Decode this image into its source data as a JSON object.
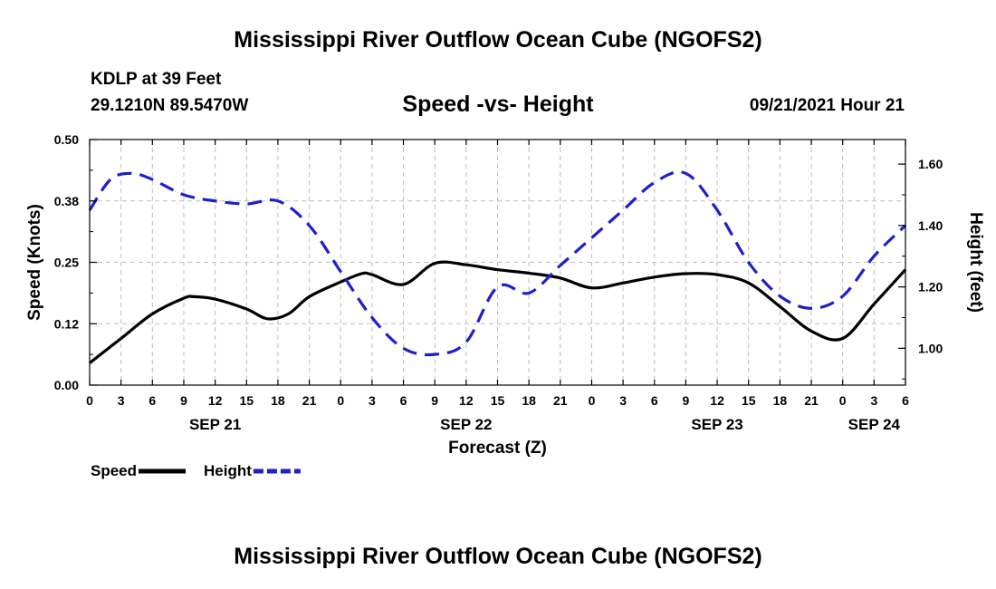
{
  "header": {
    "title": "Mississippi River Outflow Ocean Cube (NGOFS2)",
    "station": "KDLP at 39 Feet",
    "coords": "29.1210N  89.5470W",
    "subtitle": "Speed -vs- Height",
    "datetime": "09/21/2021 Hour 21"
  },
  "footer": {
    "title": "Mississippi River Outflow Ocean Cube (NGOFS2)"
  },
  "chart_data": {
    "type": "line",
    "title": "Speed -vs- Height",
    "xlabel": "Forecast (Z)",
    "ylabel_left": "Speed (Knots)",
    "ylabel_right": "Height (feet)",
    "x_unit": "hours from 09/21 00Z",
    "xlim": [
      0,
      78
    ],
    "ylim_left": [
      0,
      0.5
    ],
    "ylim_right": [
      0.88,
      1.68
    ],
    "x_tick_hours": [
      0,
      3,
      6,
      9,
      12,
      15,
      18,
      21,
      24,
      27,
      30,
      33,
      36,
      39,
      42,
      45,
      48,
      51,
      54,
      57,
      60,
      63,
      66,
      69,
      72,
      75,
      78
    ],
    "x_tick_labels": [
      "0",
      "3",
      "6",
      "9",
      "12",
      "15",
      "18",
      "21",
      "0",
      "3",
      "6",
      "9",
      "12",
      "15",
      "18",
      "21",
      "0",
      "3",
      "6",
      "9",
      "12",
      "15",
      "18",
      "21",
      "0",
      "3",
      "6"
    ],
    "date_labels": [
      {
        "hour": 12,
        "label": "SEP 21"
      },
      {
        "hour": 36,
        "label": "SEP 22"
      },
      {
        "hour": 60,
        "label": "SEP 23"
      },
      {
        "hour": 75,
        "label": "SEP 24"
      }
    ],
    "y_left_ticks": [
      "0.00",
      "0.12",
      "0.25",
      "0.38",
      "0.50"
    ],
    "y_left_tick_values": [
      0,
      0.125,
      0.25,
      0.375,
      0.5
    ],
    "y_right_ticks": [
      "1.00",
      "1.20",
      "1.40",
      "1.60"
    ],
    "y_right_tick_values": [
      1.0,
      1.2,
      1.4,
      1.6
    ],
    "grid": true,
    "series": [
      {
        "name": "Speed",
        "axis": "left",
        "color": "#000000",
        "style": "solid",
        "x": [
          0,
          3,
          6,
          9,
          10,
          12,
          15,
          17,
          19,
          21,
          24,
          26,
          27,
          30,
          33,
          36,
          39,
          42,
          45,
          48,
          51,
          54,
          57,
          60,
          63,
          66,
          69,
          72,
          75,
          78
        ],
        "values": [
          0.045,
          0.095,
          0.145,
          0.177,
          0.18,
          0.175,
          0.155,
          0.135,
          0.145,
          0.18,
          0.21,
          0.227,
          0.225,
          0.205,
          0.248,
          0.245,
          0.235,
          0.228,
          0.218,
          0.198,
          0.208,
          0.22,
          0.227,
          0.225,
          0.208,
          0.16,
          0.11,
          0.095,
          0.165,
          0.235
        ]
      },
      {
        "name": "Height",
        "axis": "right",
        "color": "#1f1fcc",
        "style": "dashed",
        "x": [
          0,
          2,
          4,
          6,
          9,
          12,
          15,
          18,
          21,
          24,
          27,
          30,
          33,
          36,
          39,
          42,
          45,
          48,
          51,
          54,
          57,
          60,
          63,
          66,
          69,
          72,
          75,
          78
        ],
        "values": [
          1.45,
          1.55,
          1.57,
          1.55,
          1.5,
          1.48,
          1.47,
          1.48,
          1.4,
          1.25,
          1.1,
          1.0,
          0.98,
          1.02,
          1.2,
          1.18,
          1.27,
          1.36,
          1.45,
          1.54,
          1.57,
          1.45,
          1.28,
          1.17,
          1.13,
          1.17,
          1.3,
          1.4
        ]
      }
    ],
    "legend": [
      {
        "label": "Speed",
        "color": "#000000",
        "style": "solid"
      },
      {
        "label": "Height",
        "color": "#1f1fcc",
        "style": "dashed"
      }
    ],
    "legend_position": "bottom-left"
  }
}
